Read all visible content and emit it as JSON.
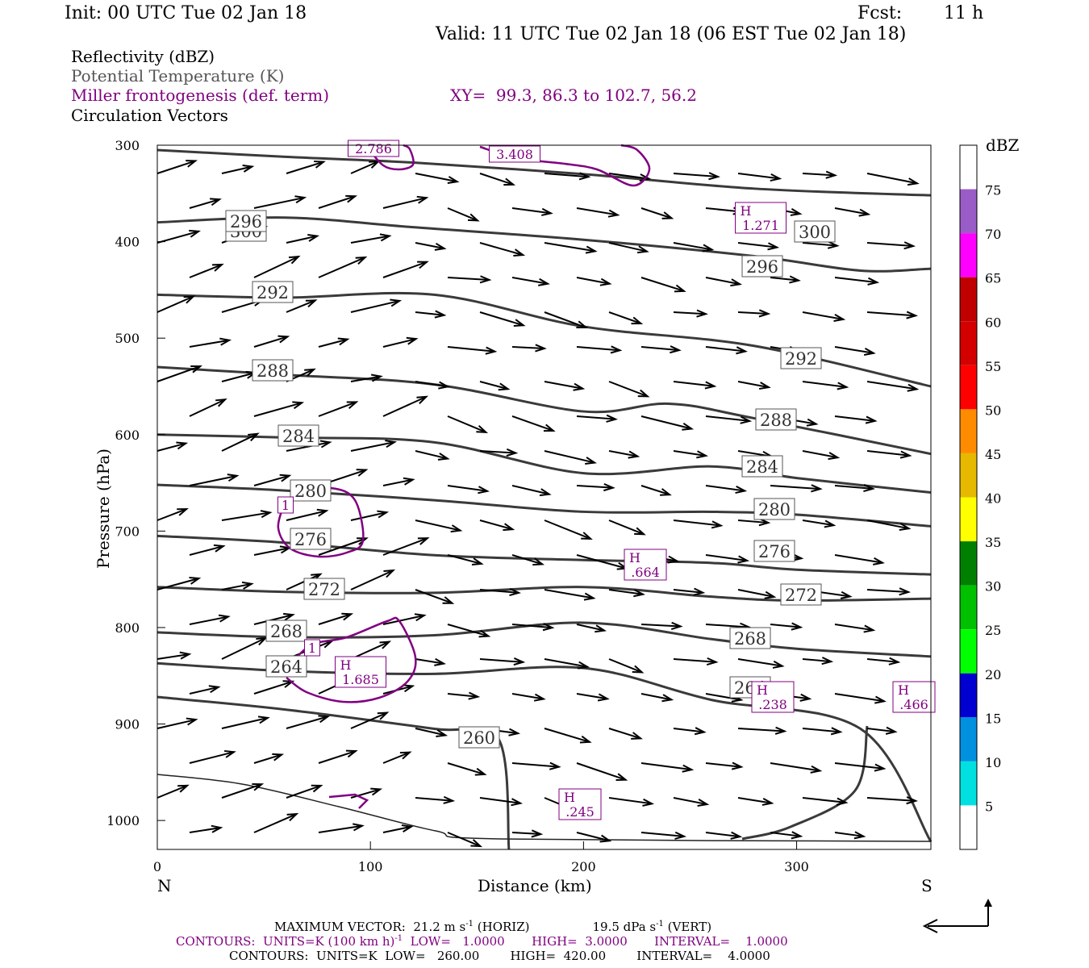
{
  "header": {
    "init": "Init: 00 UTC Tue 02 Jan 18",
    "fcst_label": "Fcst:",
    "fcst_value": "11 h",
    "valid": "Valid: 11 UTC Tue 02 Jan 18 (06 EST Tue 02 Jan 18)",
    "field1": "Reflectivity (dBZ)",
    "field2": "Potential Temperature (K)",
    "field3": "Miller frontogenesis (def. term)",
    "xy": "XY=  99.3, 86.3 to 102.7, 56.2",
    "field4": "Circulation Vectors"
  },
  "footer": {
    "max_vector": "MAXIMUM VECTOR:  21.2 m s",
    "max_vector_sup": "-1",
    "max_vector_horiz": "(HORIZ)",
    "max_vector_vert": "19.5 dPa s",
    "max_vector_vert_sup": "-1",
    "max_vector_vert_tail": "(VERT)",
    "contours1": "CONTOURS:  UNITS=K (100 km h)",
    "contours1_sup": "-1",
    "contours1_tail": "LOW=   1.0000       HIGH=  3.0000       INTERVAL=    1.0000",
    "contours2": "CONTOURS:  UNITS=K  LOW=   260.00        HIGH=  420.00        INTERVAL=    4.0000"
  },
  "colorbar": {
    "title": "dBZ",
    "labels": [
      "75",
      "70",
      "65",
      "60",
      "55",
      "50",
      "45",
      "40",
      "35",
      "30",
      "25",
      "20",
      "15",
      "10",
      "5"
    ],
    "colors": [
      "#ffffff",
      "#9a5cc6",
      "#ff00ff",
      "#c00000",
      "#d40000",
      "#ff0000",
      "#ff8c00",
      "#e6b800",
      "#ffff00",
      "#008000",
      "#00c000",
      "#00ff00",
      "#0000d0",
      "#0090e0",
      "#00e0e0",
      "#ffffff"
    ]
  },
  "chart_data": {
    "type": "cross-section",
    "xlabel": "Distance (km)",
    "ylabel": "Pressure (hPa)",
    "xlim": [
      0,
      363
    ],
    "ylim": [
      1030,
      300
    ],
    "x_ticks": [
      "0",
      "100",
      "200",
      "300"
    ],
    "y_ticks": [
      "300",
      "400",
      "500",
      "600",
      "700",
      "800",
      "900",
      "1000"
    ],
    "x_end_labels": {
      "left": "N",
      "right": "S"
    },
    "theta_contours": [
      {
        "label": "300",
        "points": [
          [
            0,
            305
          ],
          [
            60,
            312
          ],
          [
            120,
            318
          ],
          [
            200,
            330
          ],
          [
            280,
            345
          ],
          [
            363,
            352
          ]
        ]
      },
      {
        "label": "296",
        "points": [
          [
            0,
            380
          ],
          [
            60,
            375
          ],
          [
            120,
            385
          ],
          [
            200,
            398
          ],
          [
            280,
            415
          ],
          [
            330,
            430
          ],
          [
            363,
            428
          ]
        ]
      },
      {
        "label": "292",
        "points": [
          [
            0,
            455
          ],
          [
            60,
            458
          ],
          [
            130,
            455
          ],
          [
            200,
            488
          ],
          [
            280,
            508
          ],
          [
            363,
            550
          ]
        ]
      },
      {
        "label": "288",
        "points": [
          [
            0,
            530
          ],
          [
            60,
            538
          ],
          [
            130,
            548
          ],
          [
            200,
            576
          ],
          [
            240,
            568
          ],
          [
            280,
            583
          ],
          [
            363,
            620
          ]
        ]
      },
      {
        "label": "284",
        "points": [
          [
            0,
            600
          ],
          [
            60,
            603
          ],
          [
            130,
            608
          ],
          [
            200,
            640
          ],
          [
            260,
            633
          ],
          [
            300,
            645
          ],
          [
            363,
            660
          ]
        ]
      },
      {
        "label": "280",
        "points": [
          [
            0,
            652
          ],
          [
            60,
            658
          ],
          [
            130,
            668
          ],
          [
            200,
            680
          ],
          [
            260,
            680
          ],
          [
            300,
            683
          ],
          [
            363,
            695
          ]
        ]
      },
      {
        "label": "276",
        "points": [
          [
            0,
            705
          ],
          [
            60,
            712
          ],
          [
            130,
            725
          ],
          [
            200,
            730
          ],
          [
            260,
            733
          ],
          [
            300,
            740
          ],
          [
            363,
            745
          ]
        ]
      },
      {
        "label": "272",
        "points": [
          [
            0,
            758
          ],
          [
            60,
            763
          ],
          [
            130,
            764
          ],
          [
            200,
            758
          ],
          [
            260,
            768
          ],
          [
            300,
            772
          ],
          [
            363,
            770
          ]
        ]
      },
      {
        "label": "268",
        "points": [
          [
            0,
            805
          ],
          [
            60,
            810
          ],
          [
            130,
            808
          ],
          [
            200,
            795
          ],
          [
            260,
            812
          ],
          [
            300,
            822
          ],
          [
            363,
            830
          ]
        ]
      },
      {
        "label": "264",
        "points": [
          [
            0,
            837
          ],
          [
            60,
            845
          ],
          [
            130,
            848
          ],
          [
            200,
            842
          ],
          [
            260,
            875
          ],
          [
            330,
            905
          ],
          [
            363,
            1022
          ]
        ]
      },
      {
        "label": "260",
        "points": [
          [
            0,
            872
          ],
          [
            60,
            885
          ],
          [
            130,
            905
          ],
          [
            160,
            915
          ],
          [
            165,
            1030
          ]
        ]
      }
    ],
    "frontogenesis_labels": [
      {
        "text": "H",
        "value": "1.271"
      },
      {
        "text": "H",
        "value": ".664"
      },
      {
        "text": "H",
        "value": "1.685"
      },
      {
        "text": "H",
        "value": ".238"
      },
      {
        "text": "H",
        "value": ".466"
      },
      {
        "text": "H",
        "value": ".245"
      },
      {
        "text": "",
        "value": "2.786"
      },
      {
        "text": "",
        "value": "3.408"
      },
      {
        "text": "",
        "value": "1"
      },
      {
        "text": "",
        "value": "1"
      }
    ],
    "max_vector_horiz_ms": 21.2,
    "max_vector_vert_dpas": 19.5
  }
}
